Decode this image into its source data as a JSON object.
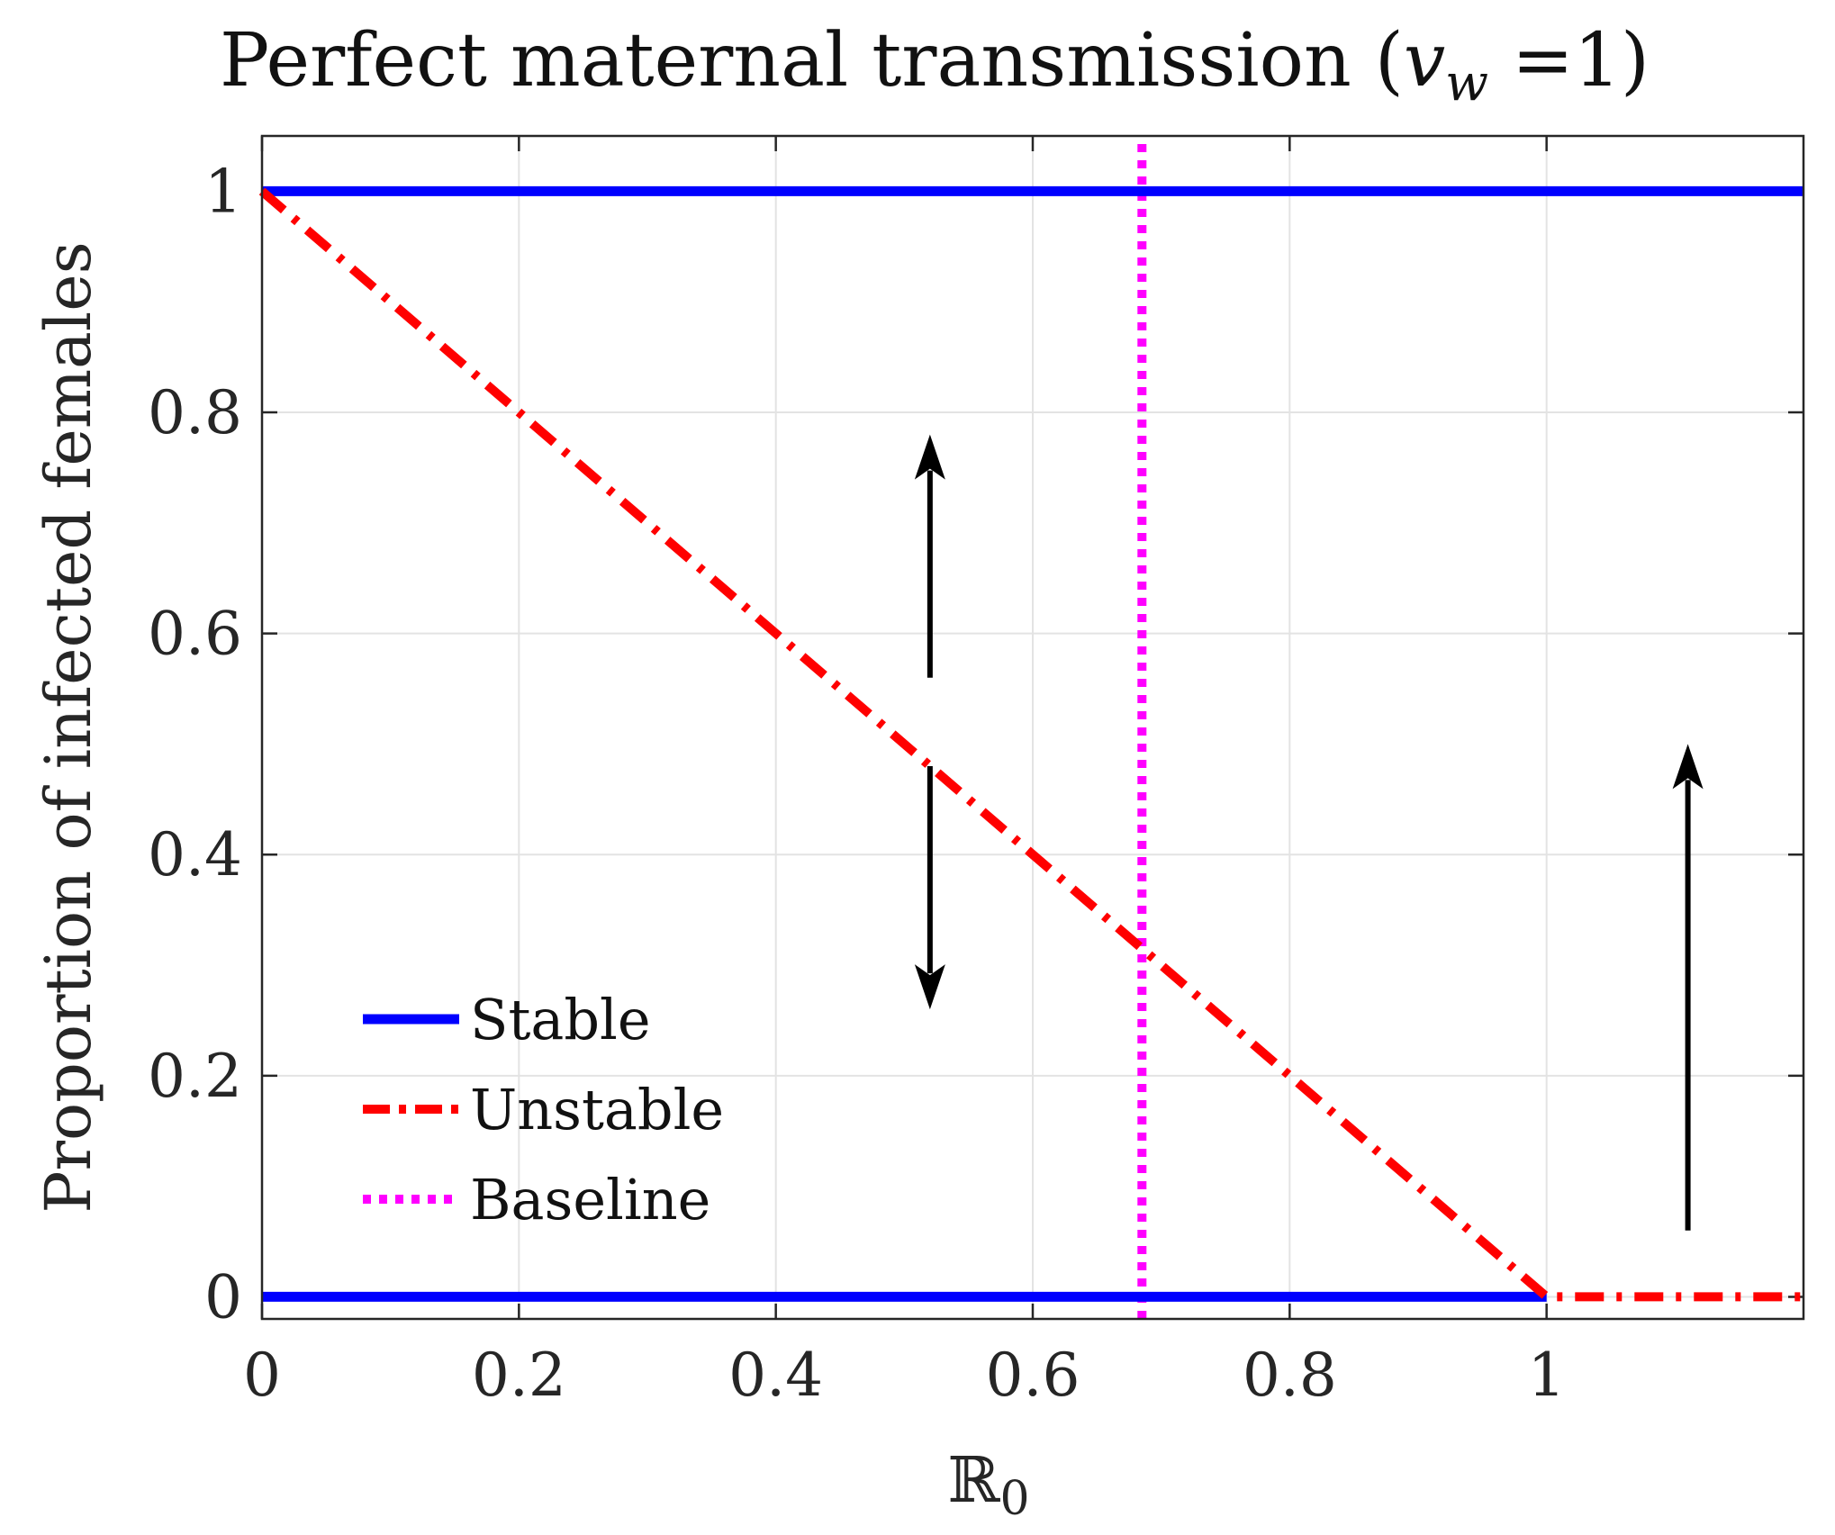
{
  "chart_data": {
    "type": "line",
    "title": {
      "prefix": "Perfect maternal transmission (",
      "var": "v",
      "sub": "w",
      "suffix": " =1)"
    },
    "xlabel": {
      "main": "ℝ",
      "sub": "0"
    },
    "ylabel": "Proportion of infected females",
    "xlim": [
      0,
      1.2
    ],
    "ylim": [
      -0.02,
      1.05
    ],
    "x_ticks": [
      0,
      0.2,
      0.4,
      0.6,
      0.8,
      1
    ],
    "x_tick_labels": [
      "0",
      "0.2",
      "0.4",
      "0.6",
      "0.8",
      "1"
    ],
    "y_ticks": [
      0,
      0.2,
      0.4,
      0.6,
      0.8,
      1
    ],
    "y_tick_labels": [
      "0",
      "0.2",
      "0.4",
      "0.6",
      "0.8",
      "1"
    ],
    "grid": true,
    "series": [
      {
        "name": "Stable",
        "style": "solid",
        "color": "#0000FF",
        "points": [
          [
            0,
            1
          ],
          [
            1.2,
            1
          ]
        ]
      },
      {
        "name": "Stable",
        "style": "solid",
        "color": "#0000FF",
        "points": [
          [
            0,
            0
          ],
          [
            1,
            0
          ]
        ]
      },
      {
        "name": "Unstable",
        "style": "dashdot",
        "color": "#FF0000",
        "points": [
          [
            0,
            1
          ],
          [
            1,
            0
          ],
          [
            1.2,
            0
          ]
        ]
      },
      {
        "name": "Baseline",
        "style": "dotted",
        "color": "#FF00FF",
        "points": [
          [
            0.685,
            -0.02
          ],
          [
            0.685,
            1.05
          ]
        ]
      }
    ],
    "arrows": [
      {
        "name": "up-arrow-left",
        "x": 0.52,
        "from": 0.56,
        "to": 0.78
      },
      {
        "name": "down-arrow-left",
        "x": 0.52,
        "from": 0.48,
        "to": 0.26
      },
      {
        "name": "up-arrow-right",
        "x": 1.11,
        "from": 0.06,
        "to": 0.5
      }
    ],
    "legend": {
      "position": "bottom-left",
      "entries": [
        {
          "label": "Stable",
          "style": "solid",
          "color": "#0000FF"
        },
        {
          "label": "Unstable",
          "style": "dashdot",
          "color": "#FF0000"
        },
        {
          "label": "Baseline",
          "style": "dotted",
          "color": "#FF00FF"
        }
      ]
    }
  }
}
